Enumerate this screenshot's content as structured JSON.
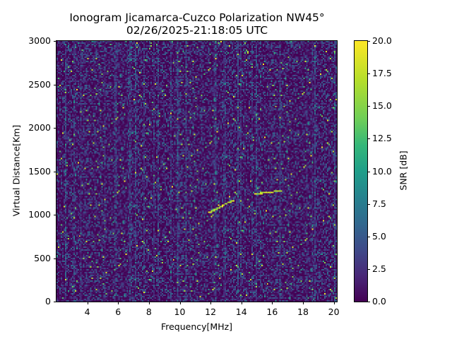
{
  "chart_data": {
    "type": "heatmap",
    "title": "Ionogram Jicamarca-Cuzco Polarization NW45°",
    "subtitle": "02/26/2025-21:18:05 UTC",
    "xlabel": "Frequency[MHz]",
    "ylabel": "Virtual Distance[Km]",
    "xlim": [
      2.0,
      20.2
    ],
    "ylim": [
      0,
      3000
    ],
    "xticks": [
      4,
      6,
      8,
      10,
      12,
      14,
      16,
      18,
      20
    ],
    "yticks": [
      0,
      500,
      1000,
      1500,
      2000,
      2500,
      3000
    ],
    "colorbar": {
      "label": "SNR [dB]",
      "range": [
        0.0,
        20.0
      ],
      "ticks": [
        "0.0",
        "2.5",
        "5.0",
        "7.5",
        "10.0",
        "12.5",
        "15.0",
        "17.5",
        "20.0"
      ],
      "colormap": "viridis"
    },
    "grid": false,
    "features": [
      {
        "description": "Oblique echo trace (high SNR)",
        "points": [
          [
            11.8,
            1030
          ],
          [
            12.5,
            1090
          ],
          [
            13.0,
            1140
          ],
          [
            13.5,
            1170
          ]
        ]
      },
      {
        "description": "Oblique echo trace upper branch (high SNR)",
        "points": [
          [
            14.8,
            1250
          ],
          [
            15.5,
            1260
          ],
          [
            16.0,
            1270
          ],
          [
            16.5,
            1290
          ]
        ]
      }
    ],
    "background": "Noisy SNR mostly 0-5 dB with vertical interference streaks"
  },
  "title": {
    "line1": "Ionogram Jicamarca-Cuzco Polarization NW45°",
    "line2": "02/26/2025-21:18:05 UTC"
  },
  "axes": {
    "xlabel": "Frequency[MHz]",
    "ylabel": "Virtual Distance[Km]",
    "xticks": [
      "4",
      "6",
      "8",
      "10",
      "12",
      "14",
      "16",
      "18",
      "20"
    ],
    "yticks": [
      "0",
      "500",
      "1000",
      "1500",
      "2000",
      "2500",
      "3000"
    ]
  },
  "colorbar": {
    "label": "SNR [dB]",
    "ticks": [
      "0.0",
      "2.5",
      "5.0",
      "7.5",
      "10.0",
      "12.5",
      "15.0",
      "17.5",
      "20.0"
    ]
  }
}
